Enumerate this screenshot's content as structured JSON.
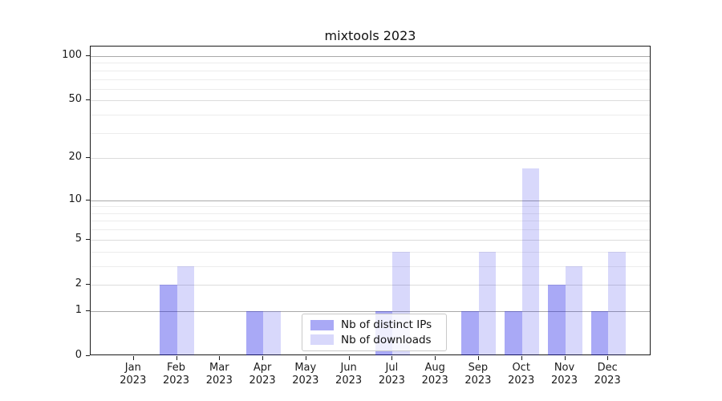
{
  "figure": {
    "background": "#ffffff",
    "spine_color": "#1a1a1a"
  },
  "chart_data": {
    "type": "bar",
    "title": "mixtools 2023",
    "categories": [
      "Jan",
      "Feb",
      "Mar",
      "Apr",
      "May",
      "Jun",
      "Jul",
      "Aug",
      "Sep",
      "Oct",
      "Nov",
      "Dec"
    ],
    "category_year": "2023",
    "series": [
      {
        "name": "Nb of distinct IPs",
        "color": "rgba(10,10,230,0.35)",
        "approx_hex": "#aaaaf6",
        "values": [
          0,
          2,
          0,
          1,
          0,
          0,
          1,
          0,
          1,
          1,
          2,
          1
        ]
      },
      {
        "name": "Nb of downloads",
        "color": "rgba(10,10,230,0.16)",
        "approx_hex": "#d9d9f9",
        "values": [
          0,
          3,
          0,
          1,
          0,
          0,
          4,
          0,
          4,
          17,
          3,
          4
        ]
      }
    ],
    "xlabel": "",
    "ylabel": "",
    "y_axis": {
      "scale": "log1p",
      "ticks": [
        0,
        1,
        2,
        5,
        10,
        20,
        50,
        100
      ],
      "decade_ticks": [
        1,
        10,
        100
      ],
      "sub_major_ticks": [
        2,
        5,
        20,
        50
      ],
      "minor_ticks": [
        3,
        4,
        6,
        7,
        8,
        9,
        30,
        40,
        60,
        70,
        80,
        90
      ],
      "max": 116,
      "min": 0
    },
    "grid": {
      "decade_color": "#a9a9a9",
      "sub_major_color": "#dcdcdc",
      "minor_color": "#ececec",
      "grid_on": true
    },
    "legend": {
      "position": "lower center",
      "background": "rgba(255,255,255,0.8)",
      "border_color": "#c9c9c9"
    }
  }
}
